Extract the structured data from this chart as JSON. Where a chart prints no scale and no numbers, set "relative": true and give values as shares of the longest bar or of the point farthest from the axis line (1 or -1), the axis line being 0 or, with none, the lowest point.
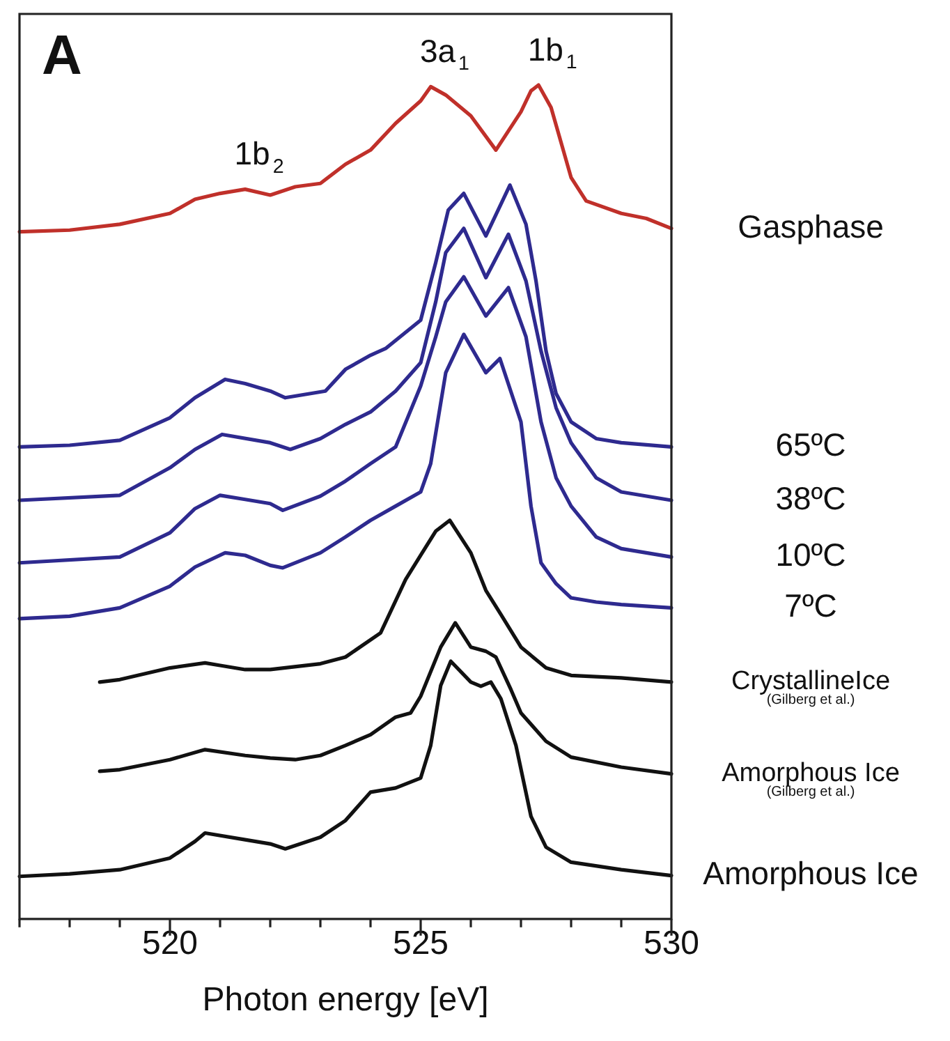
{
  "chart_data": {
    "type": "line",
    "xlabel": "Photon energy [eV]",
    "relative": true,
    "xlim": [
      517,
      530
    ],
    "xticks": [
      {
        "value": 517,
        "label": null
      },
      {
        "value": 518,
        "label": null
      },
      {
        "value": 519,
        "label": null
      },
      520,
      {
        "value": 521,
        "label": null
      },
      {
        "value": 522,
        "label": null
      },
      {
        "value": 523,
        "label": null
      },
      {
        "value": 524,
        "label": null
      },
      525,
      {
        "value": 526,
        "label": null
      },
      {
        "value": 527,
        "label": null
      },
      {
        "value": 528,
        "label": null
      },
      {
        "value": 529,
        "label": null
      },
      530
    ],
    "tick_labels": "x",
    "grid": false,
    "legend": false,
    "marker": "none",
    "line_style": "solid",
    "annotations": [
      "A",
      {
        "text": "3a$_{1}$",
        "x": 525.2,
        "y": 0.998
      },
      {
        "text": "1b$_{1}$",
        "x": 527.35,
        "y": 1.0
      },
      {
        "text": "1b$_{2}$",
        "x": 521.5,
        "y": 0.875
      }
    ],
    "series": [
      {
        "name": "Gasphase",
        "color": "#c0302a",
        "x": [
          517,
          518,
          519,
          520,
          520.5,
          521,
          521.5,
          522,
          522.5,
          523,
          523.5,
          524,
          524.5,
          525,
          525.2,
          525.5,
          526,
          526.5,
          527,
          527.2,
          527.35,
          527.6,
          528,
          528.3,
          529,
          529.5,
          530
        ],
        "values": [
          0.824,
          0.826,
          0.833,
          0.846,
          0.863,
          0.87,
          0.875,
          0.868,
          0.878,
          0.882,
          0.905,
          0.922,
          0.954,
          0.981,
          0.998,
          0.988,
          0.963,
          0.922,
          0.968,
          0.993,
          1.0,
          0.973,
          0.889,
          0.861,
          0.846,
          0.84,
          0.828
        ]
      },
      {
        "name": "65ºC",
        "color": "#2e2a8f",
        "x": [
          517,
          518,
          519,
          520,
          520.5,
          521.1,
          521.5,
          522,
          522.3,
          523.1,
          523.5,
          524,
          524.3,
          525,
          525.3,
          525.55,
          525.86,
          526.3,
          526.78,
          527.1,
          527.3,
          527.5,
          527.7,
          528,
          528.5,
          529,
          530
        ],
        "values": [
          0.566,
          0.568,
          0.574,
          0.601,
          0.625,
          0.647,
          0.642,
          0.633,
          0.625,
          0.633,
          0.659,
          0.676,
          0.684,
          0.718,
          0.787,
          0.85,
          0.87,
          0.819,
          0.88,
          0.833,
          0.765,
          0.681,
          0.63,
          0.596,
          0.576,
          0.571,
          0.566
        ]
      },
      {
        "name": "38ºC",
        "color": "#2e2a8f",
        "x": [
          517,
          519,
          520,
          520.5,
          521.04,
          522,
          522.4,
          523,
          523.5,
          524,
          524.5,
          525,
          525.3,
          525.5,
          525.86,
          526.3,
          526.75,
          527.1,
          527.4,
          527.7,
          528,
          528.5,
          529,
          530
        ],
        "values": [
          0.502,
          0.508,
          0.541,
          0.563,
          0.581,
          0.571,
          0.563,
          0.576,
          0.593,
          0.608,
          0.633,
          0.667,
          0.74,
          0.799,
          0.828,
          0.769,
          0.821,
          0.765,
          0.681,
          0.613,
          0.571,
          0.529,
          0.512,
          0.502
        ]
      },
      {
        "name": "10ºC",
        "color": "#2e2a8f",
        "x": [
          517,
          519,
          520,
          520.5,
          521,
          521.5,
          522,
          522.25,
          523,
          523.5,
          524,
          524.5,
          525,
          525.3,
          525.5,
          525.86,
          526.3,
          526.75,
          527.1,
          527.4,
          527.7,
          528,
          528.5,
          529,
          530
        ],
        "values": [
          0.427,
          0.434,
          0.463,
          0.492,
          0.508,
          0.503,
          0.498,
          0.49,
          0.507,
          0.525,
          0.546,
          0.566,
          0.639,
          0.698,
          0.74,
          0.77,
          0.723,
          0.757,
          0.698,
          0.596,
          0.529,
          0.495,
          0.458,
          0.444,
          0.434
        ]
      },
      {
        "name": "7ºC",
        "color": "#2e2a8f",
        "x": [
          517,
          518,
          519,
          520,
          520.5,
          521.1,
          521.5,
          522,
          522.25,
          523,
          523.5,
          524,
          524.5,
          525,
          525.2,
          525.5,
          525.86,
          526.3,
          526.58,
          527,
          527.2,
          527.4,
          527.7,
          528,
          528.5,
          529,
          530
        ],
        "values": [
          0.36,
          0.363,
          0.373,
          0.399,
          0.422,
          0.439,
          0.436,
          0.424,
          0.421,
          0.439,
          0.458,
          0.478,
          0.495,
          0.512,
          0.546,
          0.655,
          0.701,
          0.655,
          0.672,
          0.596,
          0.495,
          0.427,
          0.402,
          0.385,
          0.38,
          0.377,
          0.373
        ]
      },
      {
        "name": "CrystallineIce\n(Gilberg et al.)",
        "color": "#111111",
        "x": [
          518.6,
          519,
          520,
          520.7,
          521,
          521.5,
          522,
          523,
          523.5,
          524.2,
          524.7,
          525,
          525.3,
          525.58,
          526,
          526.3,
          526.6,
          527,
          527.5,
          528,
          529,
          530
        ],
        "values": [
          0.284,
          0.287,
          0.301,
          0.307,
          0.304,
          0.299,
          0.299,
          0.306,
          0.314,
          0.343,
          0.407,
          0.436,
          0.465,
          0.478,
          0.439,
          0.394,
          0.365,
          0.326,
          0.301,
          0.292,
          0.289,
          0.284
        ]
      },
      {
        "name": "Amorphous Ice\n(Gilberg et al.)",
        "color": "#111111",
        "x": [
          518.6,
          519,
          520,
          520.7,
          521.5,
          522,
          522.5,
          523,
          523.5,
          524,
          524.5,
          524.8,
          525,
          525.4,
          525.69,
          526,
          526.3,
          526.5,
          526.8,
          527,
          527.5,
          528,
          529,
          530
        ],
        "values": [
          0.177,
          0.179,
          0.191,
          0.203,
          0.196,
          0.193,
          0.191,
          0.196,
          0.208,
          0.221,
          0.242,
          0.247,
          0.267,
          0.326,
          0.355,
          0.326,
          0.321,
          0.314,
          0.275,
          0.247,
          0.213,
          0.194,
          0.182,
          0.174
        ]
      },
      {
        "name": "Amorphous Ice",
        "color": "#111111",
        "x": [
          517,
          518,
          519,
          520,
          520.5,
          520.7,
          521.5,
          522,
          522.3,
          523,
          523.5,
          524,
          524.5,
          525,
          525.2,
          525.4,
          525.6,
          526,
          526.2,
          526.4,
          526.6,
          526.9,
          527.2,
          527.5,
          528,
          529,
          530
        ],
        "values": [
          0.051,
          0.054,
          0.059,
          0.073,
          0.093,
          0.103,
          0.095,
          0.09,
          0.084,
          0.098,
          0.118,
          0.152,
          0.157,
          0.169,
          0.208,
          0.28,
          0.309,
          0.284,
          0.279,
          0.284,
          0.264,
          0.208,
          0.123,
          0.086,
          0.068,
          0.059,
          0.052
        ]
      }
    ]
  }
}
